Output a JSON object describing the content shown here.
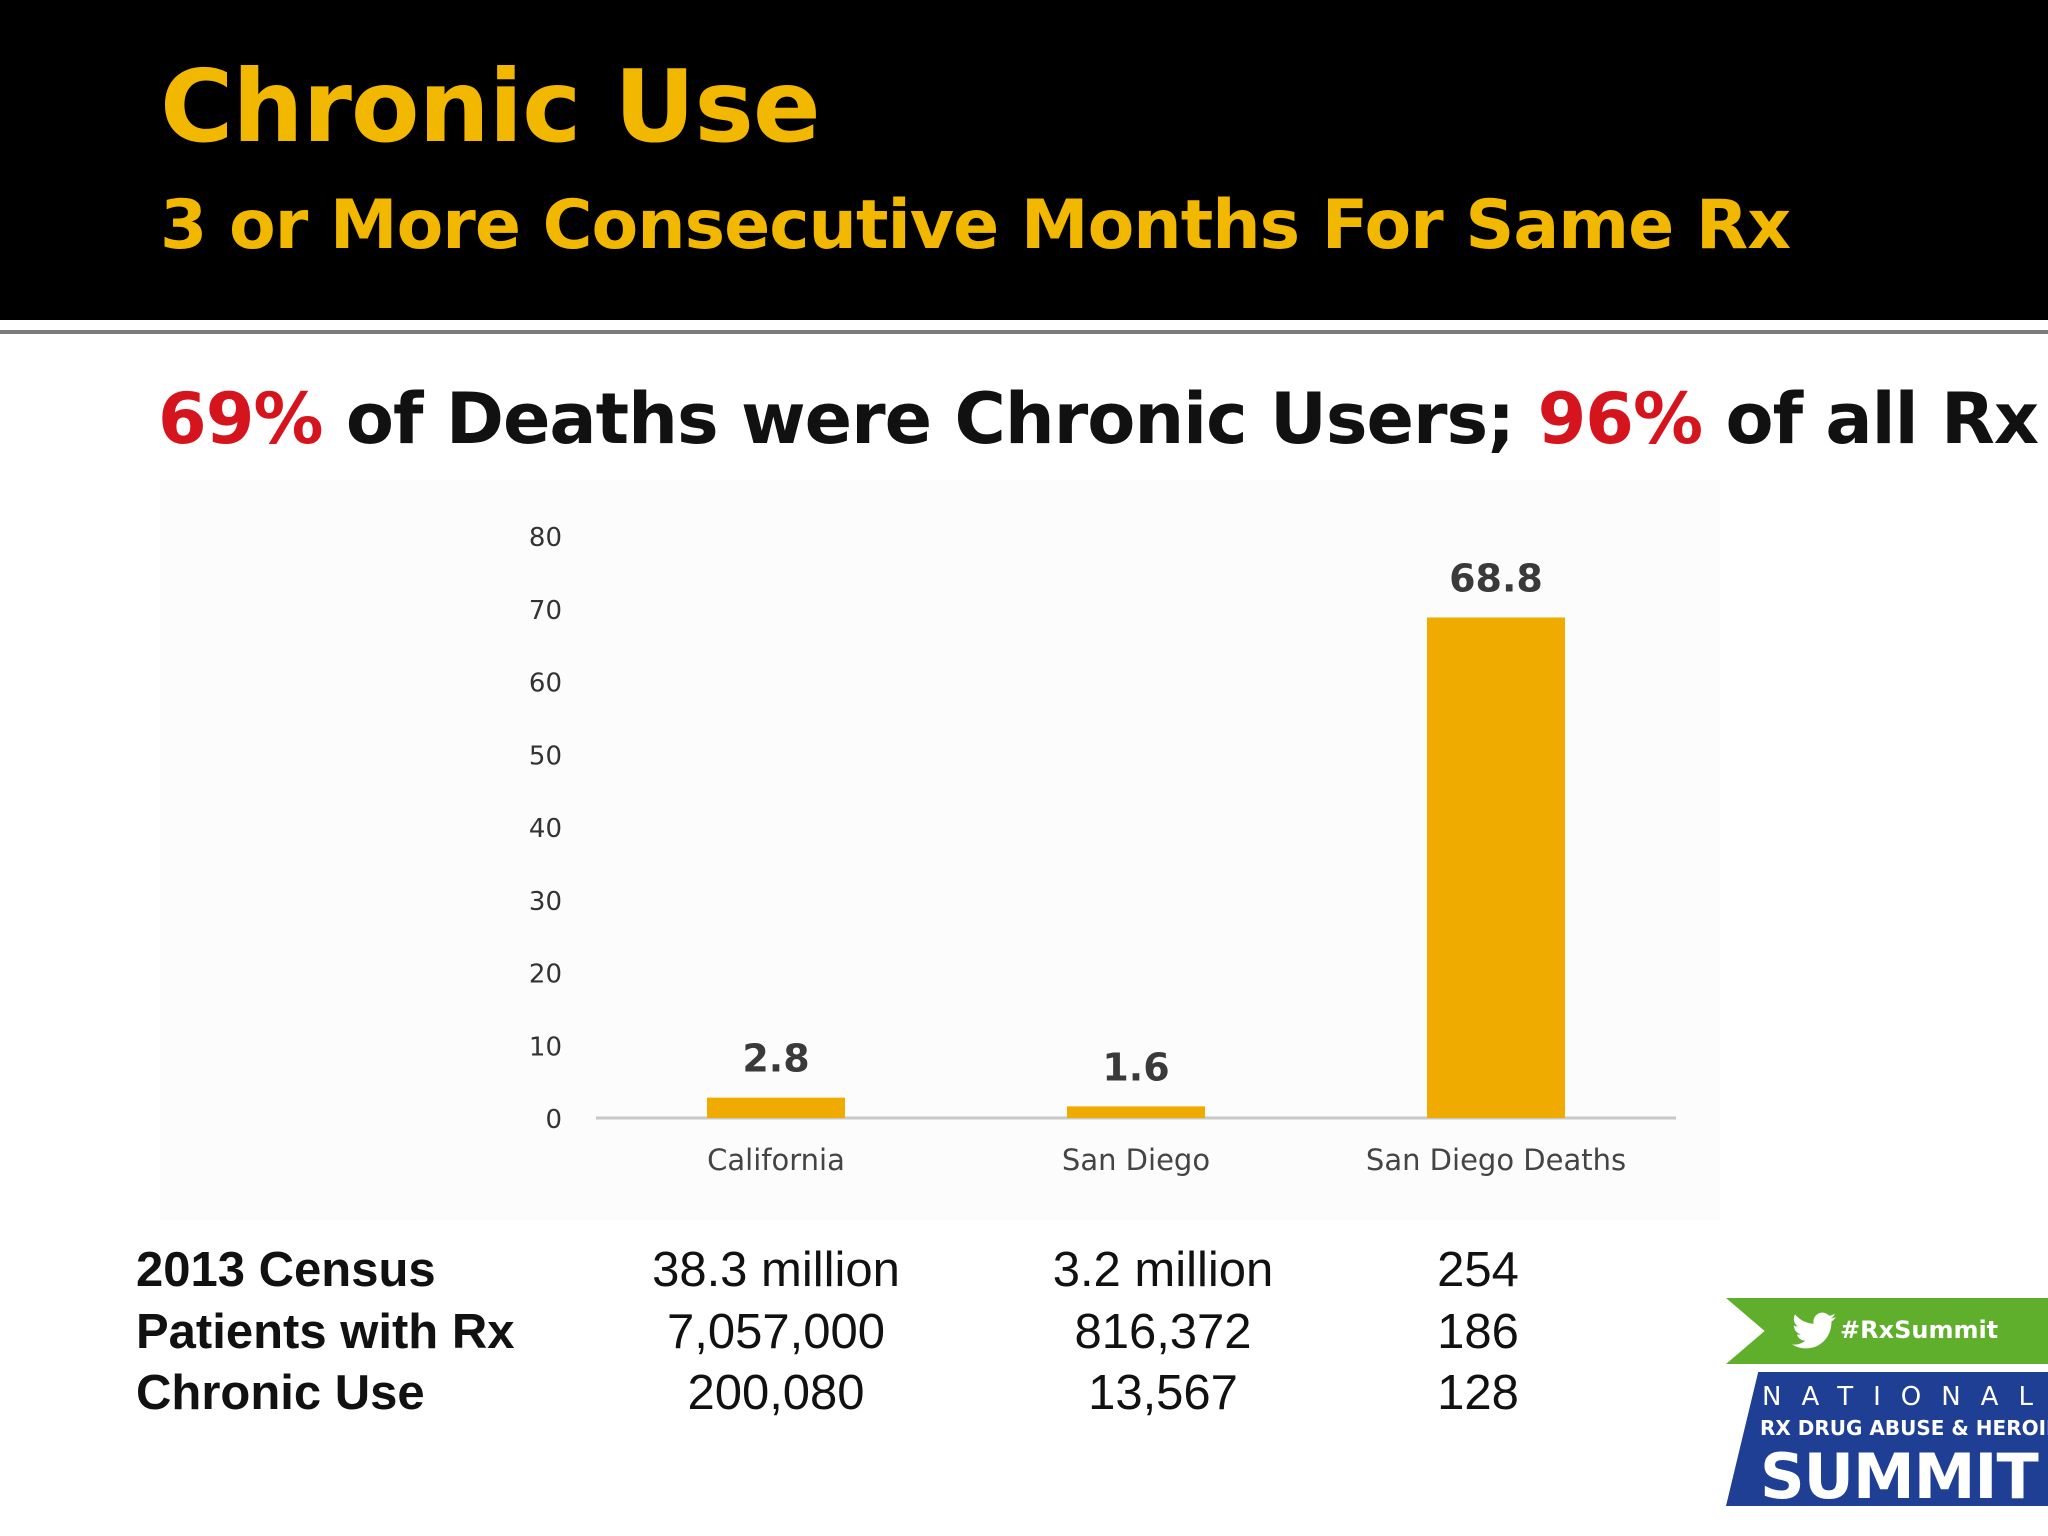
{
  "slide": {
    "title": "Chronic Use",
    "subtitle": "3 or More Consecutive Months For Same Rx",
    "headline": {
      "part1": "69%",
      "part2": " of Deaths were Chronic Users; ",
      "part3": "96%",
      "part4": " of all Rx"
    }
  },
  "chart_data": {
    "type": "bar",
    "categories": [
      "California",
      "San Diego",
      "San Diego Deaths"
    ],
    "values": [
      2.8,
      1.6,
      68.8
    ],
    "data_labels": [
      "2.8",
      "1.6",
      "68.8"
    ],
    "y_ticks": [
      "0",
      "10",
      "20",
      "30",
      "40",
      "50",
      "60",
      "70",
      "80"
    ],
    "ylim": [
      0,
      80
    ],
    "grid": false,
    "legend": "none",
    "title": "",
    "xlabel": "",
    "ylabel": "",
    "bar_color": "#f0ab00"
  },
  "table": {
    "rows": [
      {
        "label": "2013 Census",
        "values": [
          "38.3 million",
          "3.2 million",
          "254"
        ]
      },
      {
        "label": "Patients with Rx",
        "values": [
          "7,057,000",
          "816,372",
          "186"
        ]
      },
      {
        "label": "Chronic Use",
        "values": [
          "200,080",
          "13,567",
          "128"
        ]
      }
    ]
  },
  "badge": {
    "icon": "twitter-bird-icon",
    "hashtag": "#RxSummit",
    "line1": "NATIONAL",
    "line2": "RX DRUG ABUSE & HEROIN",
    "line3": "SUMMIT"
  },
  "colors": {
    "title": "#f2b800",
    "accent_red": "#d6141e",
    "bar": "#f0ab00",
    "badge_green": "#5fae2c",
    "badge_blue": "#1e3f94"
  }
}
